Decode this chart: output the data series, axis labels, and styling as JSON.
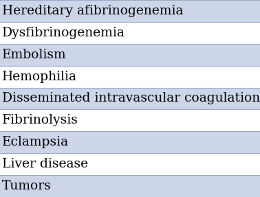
{
  "rows": [
    "Hereditary afibrinogenemia",
    "Dysfibrinogenemia",
    "Embolism",
    "Hemophilia",
    "Disseminated intravascular coagulation",
    "Fibrinolysis",
    "Eclampsia",
    "Liver disease",
    "Tumors"
  ],
  "row_colors": [
    "#cdd5e8",
    "#ffffff",
    "#cdd5e8",
    "#ffffff",
    "#cdd5e8",
    "#ffffff",
    "#cdd5e8",
    "#ffffff",
    "#cdd5e8"
  ],
  "text_color": "#000000",
  "border_color": "#9aaac8",
  "font_size": 13.5,
  "fig_width": 3.78,
  "fig_height": 2.87,
  "dpi": 100
}
